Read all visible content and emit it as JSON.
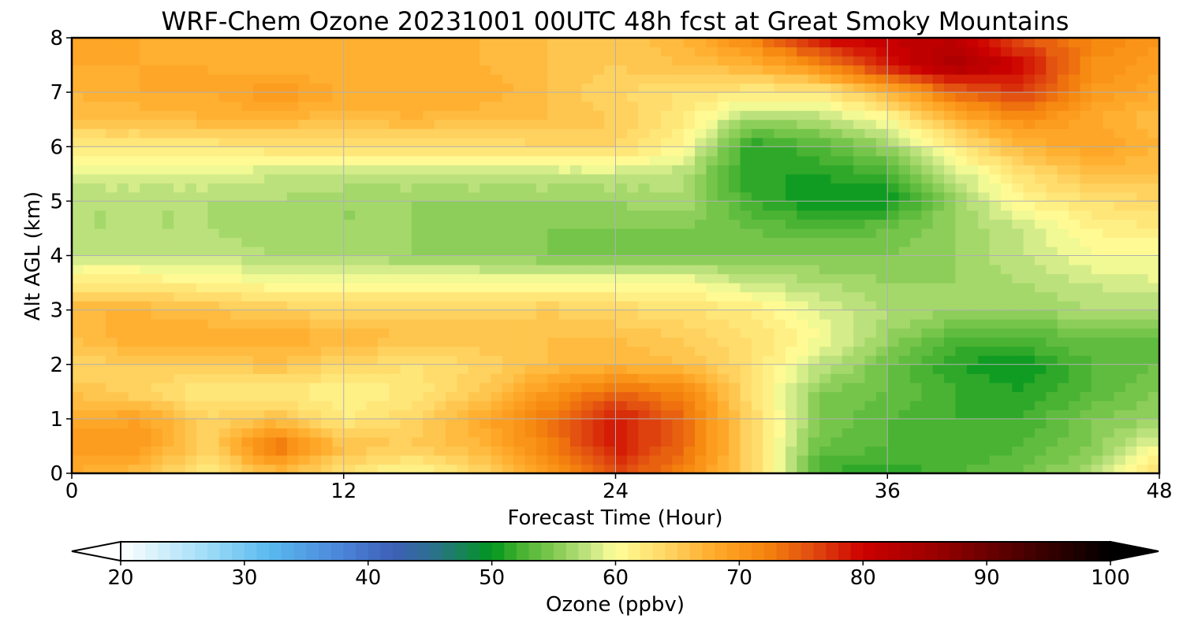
{
  "chart_data": {
    "type": "heatmap",
    "title": "WRF-Chem Ozone  20231001 00UTC 48h fcst at Great Smoky Mountains",
    "xlabel": "Forecast Time (Hour)",
    "ylabel": "Alt AGL (km)",
    "xlim": [
      0,
      48
    ],
    "ylim": [
      0,
      8
    ],
    "x_ticks": [
      "0",
      "12",
      "24",
      "36",
      "48"
    ],
    "y_ticks": [
      "0",
      "1",
      "2",
      "3",
      "4",
      "5",
      "6",
      "7",
      "8"
    ],
    "grid": true,
    "times_hour": [
      0,
      3,
      6,
      9,
      12,
      15,
      18,
      21,
      24,
      27,
      30,
      33,
      36,
      39,
      42,
      45,
      48
    ],
    "altitudes_km": [
      0,
      0.5,
      1,
      1.5,
      2,
      2.5,
      3,
      3.5,
      4,
      4.5,
      5,
      5.5,
      6,
      6.5,
      7,
      7.5,
      8
    ],
    "ozone_ppbv": [
      [
        68,
        66,
        62,
        66,
        63,
        60,
        64,
        70,
        76,
        72,
        64,
        52,
        51,
        53,
        54,
        57,
        64
      ],
      [
        70,
        70,
        64,
        74,
        66,
        65,
        67,
        72,
        79,
        74,
        64,
        54,
        53,
        52,
        53,
        55,
        60
      ],
      [
        68,
        69,
        64,
        66,
        62,
        64,
        68,
        73,
        79,
        74,
        64,
        55,
        53,
        52,
        52,
        55,
        56
      ],
      [
        66,
        64,
        62,
        62,
        61,
        62,
        65,
        70,
        74,
        72,
        63,
        55,
        54,
        52,
        51,
        53,
        55
      ],
      [
        64,
        65,
        65,
        66,
        64,
        63,
        64,
        66,
        67,
        66,
        63,
        58,
        54,
        51,
        50,
        53,
        54
      ],
      [
        66,
        68,
        68,
        68,
        67,
        66,
        66,
        66,
        66,
        65,
        63,
        60,
        56,
        53,
        53,
        54,
        54
      ],
      [
        67,
        67,
        66,
        65,
        64,
        64,
        64,
        65,
        64,
        63,
        62,
        59,
        57,
        56,
        56,
        57,
        57
      ],
      [
        62,
        62,
        61,
        60,
        60,
        60,
        60,
        60,
        60,
        60,
        58,
        57,
        56,
        56,
        57,
        58,
        59
      ],
      [
        58,
        58,
        58,
        57,
        57,
        56,
        56,
        55,
        54,
        55,
        55,
        55,
        55,
        56,
        58,
        60,
        60
      ],
      [
        57,
        57,
        57,
        56,
        56,
        56,
        55,
        55,
        55,
        55,
        54,
        53,
        54,
        56,
        58,
        61,
        62
      ],
      [
        57,
        57,
        57,
        57,
        56,
        56,
        56,
        56,
        56,
        57,
        52,
        50,
        50,
        56,
        61,
        63,
        64
      ],
      [
        59,
        59,
        59,
        58,
        58,
        58,
        58,
        58,
        58,
        57,
        51,
        51,
        52,
        58,
        63,
        66,
        66
      ],
      [
        62,
        62,
        62,
        63,
        63,
        63,
        63,
        64,
        64,
        61,
        51,
        53,
        56,
        62,
        67,
        69,
        67
      ],
      [
        66,
        66,
        67,
        67,
        66,
        67,
        66,
        66,
        65,
        62,
        56,
        57,
        60,
        67,
        71,
        68,
        66
      ],
      [
        67,
        68,
        68,
        70,
        68,
        68,
        68,
        66,
        64,
        63,
        62,
        62,
        67,
        74,
        77,
        70,
        68
      ],
      [
        68,
        68,
        68,
        67,
        67,
        67,
        67,
        66,
        65,
        66,
        67,
        71,
        79,
        84,
        80,
        71,
        69
      ],
      [
        68,
        68,
        67,
        67,
        67,
        67,
        67,
        66,
        65,
        67,
        72,
        80,
        81,
        82,
        75,
        72,
        70
      ]
    ],
    "colorbar": {
      "label": "Ozone  (ppbv)",
      "min": 20,
      "max": 100,
      "step": 1,
      "extend": "both",
      "ticks": [
        "20",
        "30",
        "40",
        "50",
        "60",
        "70",
        "80",
        "90",
        "100"
      ],
      "under_color": "#ffffff",
      "over_color": "#000000",
      "color_stops": [
        {
          "v": 20,
          "c": "#ffffff"
        },
        {
          "v": 27,
          "c": "#9fdcf7"
        },
        {
          "v": 32,
          "c": "#5ab9ef"
        },
        {
          "v": 38,
          "c": "#4b84d8"
        },
        {
          "v": 42,
          "c": "#3c5fb7"
        },
        {
          "v": 45,
          "c": "#2f6e93"
        },
        {
          "v": 50,
          "c": "#00961e"
        },
        {
          "v": 52,
          "c": "#3fae2e"
        },
        {
          "v": 55,
          "c": "#80c950"
        },
        {
          "v": 58,
          "c": "#c7e685"
        },
        {
          "v": 60,
          "c": "#ffff99"
        },
        {
          "v": 64,
          "c": "#ffd765"
        },
        {
          "v": 68,
          "c": "#ffaa2a"
        },
        {
          "v": 72,
          "c": "#f6870e"
        },
        {
          "v": 76,
          "c": "#e04a10"
        },
        {
          "v": 80,
          "c": "#cc0000"
        },
        {
          "v": 86,
          "c": "#990000"
        },
        {
          "v": 92,
          "c": "#550000"
        },
        {
          "v": 100,
          "c": "#000000"
        }
      ]
    }
  }
}
